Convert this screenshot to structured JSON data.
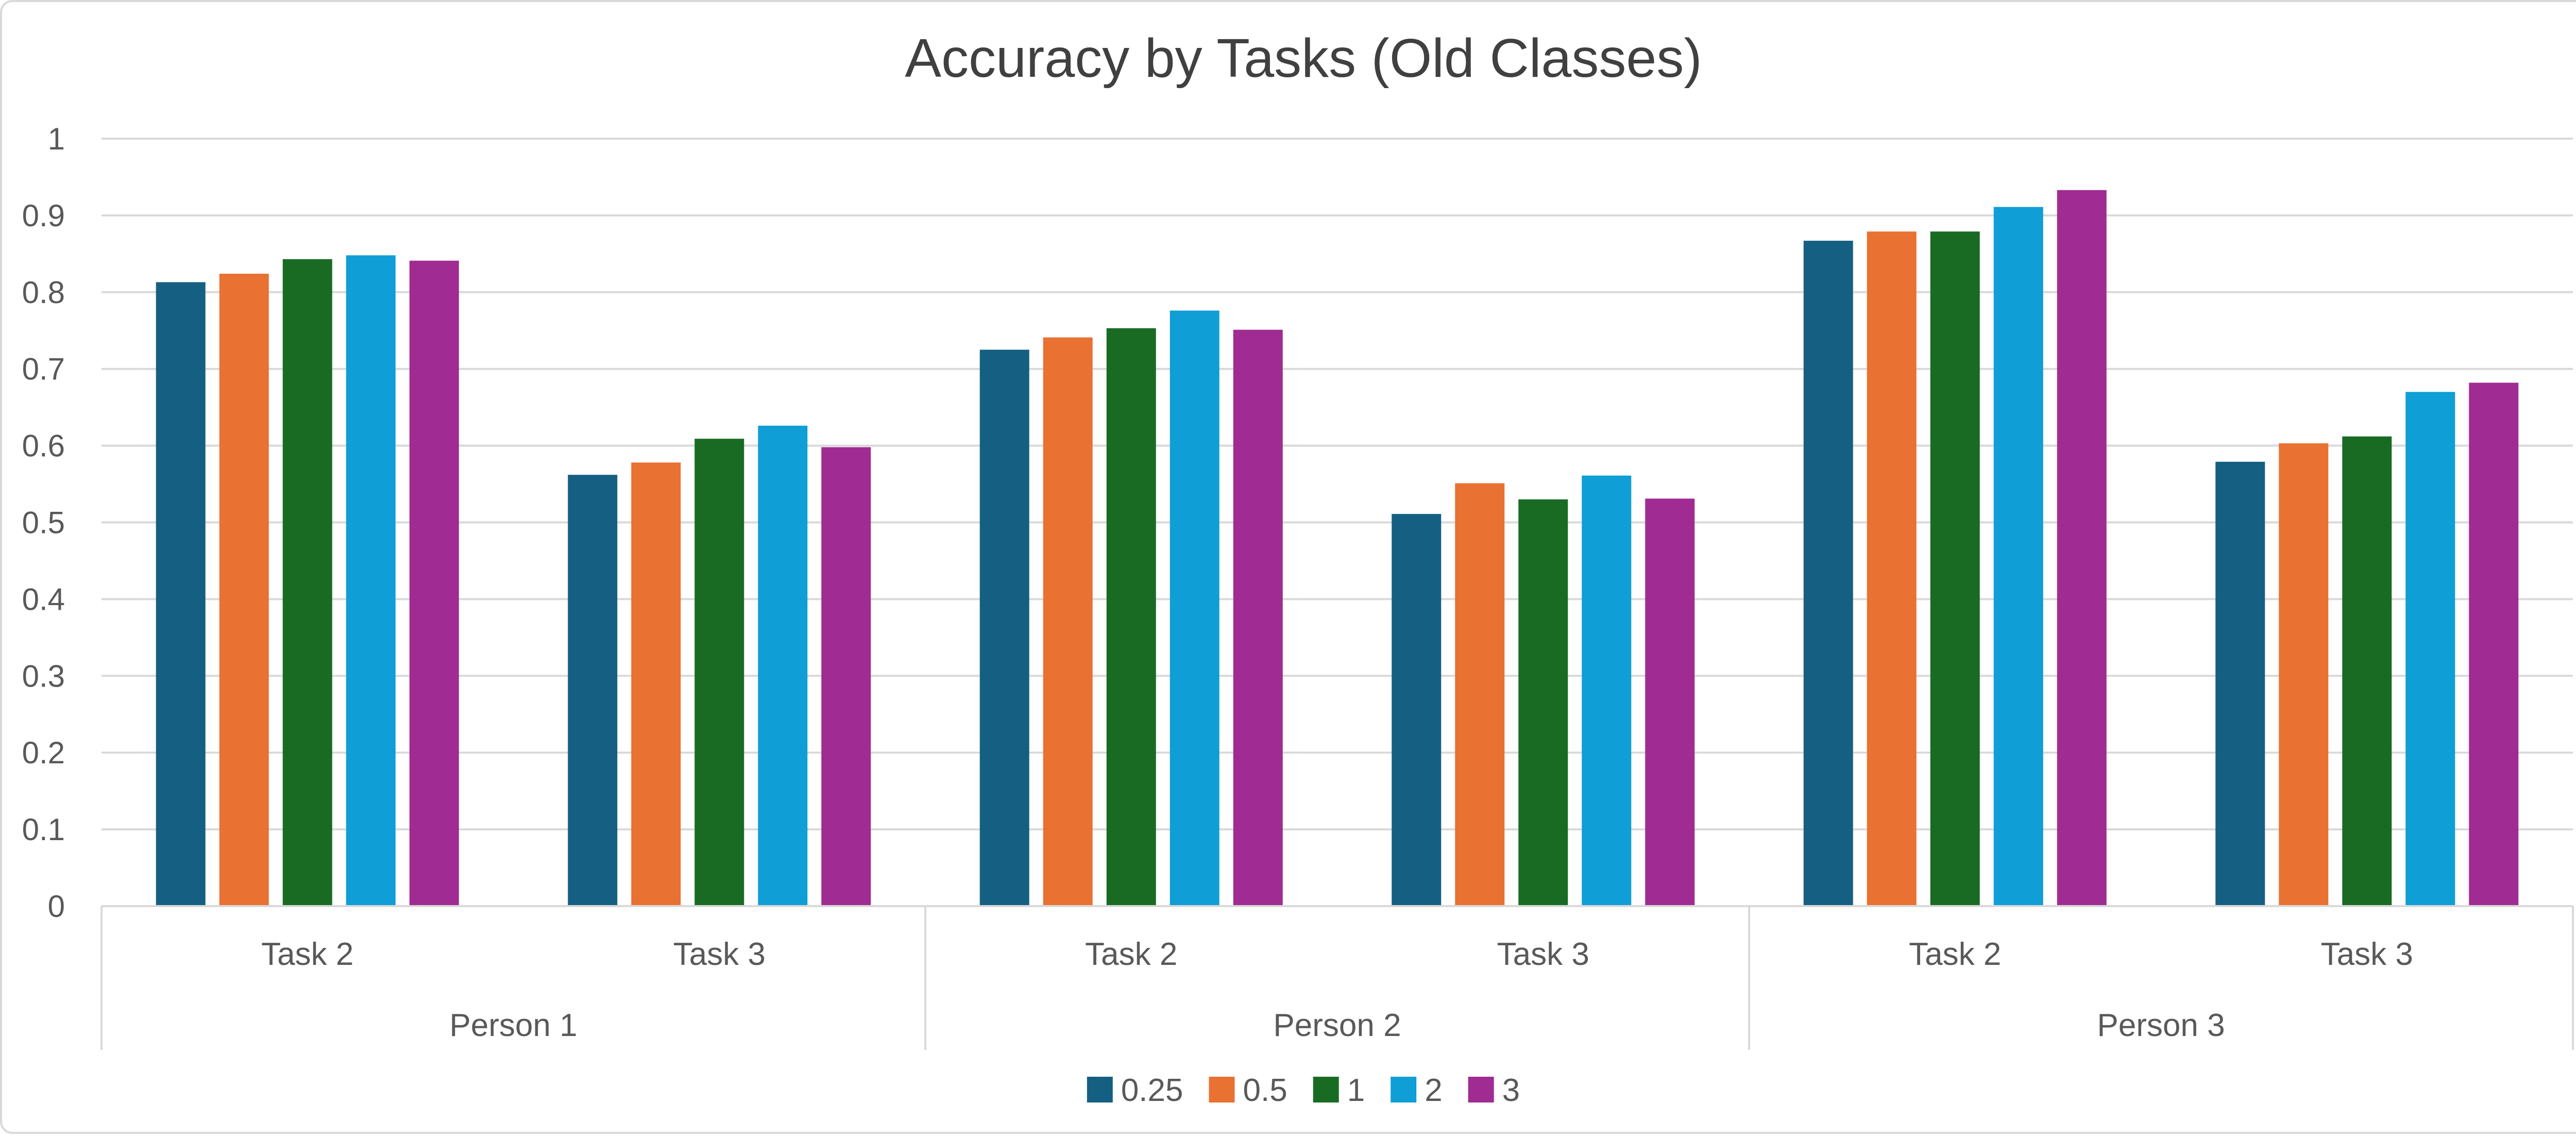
{
  "chart_data": {
    "type": "bar",
    "title": "Accuracy by Tasks (Old Classes)",
    "xlabel": "",
    "ylabel": "",
    "ylim": [
      0,
      1
    ],
    "yticks": [
      "0",
      "0.1",
      "0.2",
      "0.3",
      "0.4",
      "0.5",
      "0.6",
      "0.7",
      "0.8",
      "0.9",
      "1"
    ],
    "grid": true,
    "legend_position": "bottom",
    "groups": [
      "Person 1",
      "Person 2",
      "Person 3"
    ],
    "categories": [
      "Task 2",
      "Task 3",
      "Task 2",
      "Task 3",
      "Task 2",
      "Task 3"
    ],
    "series": [
      {
        "name": "0.25",
        "color": "#156082",
        "values": [
          0.813,
          0.562,
          0.725,
          0.511,
          0.867,
          0.579
        ]
      },
      {
        "name": "0.5",
        "color": "#E97132",
        "values": [
          0.824,
          0.578,
          0.741,
          0.551,
          0.879,
          0.603
        ]
      },
      {
        "name": "1",
        "color": "#196B24",
        "values": [
          0.843,
          0.609,
          0.753,
          0.53,
          0.879,
          0.612
        ]
      },
      {
        "name": "2",
        "color": "#0F9ED5",
        "values": [
          0.848,
          0.626,
          0.776,
          0.561,
          0.911,
          0.67
        ]
      },
      {
        "name": "3",
        "color": "#A02B93",
        "values": [
          0.841,
          0.598,
          0.751,
          0.531,
          0.933,
          0.682
        ]
      }
    ]
  }
}
